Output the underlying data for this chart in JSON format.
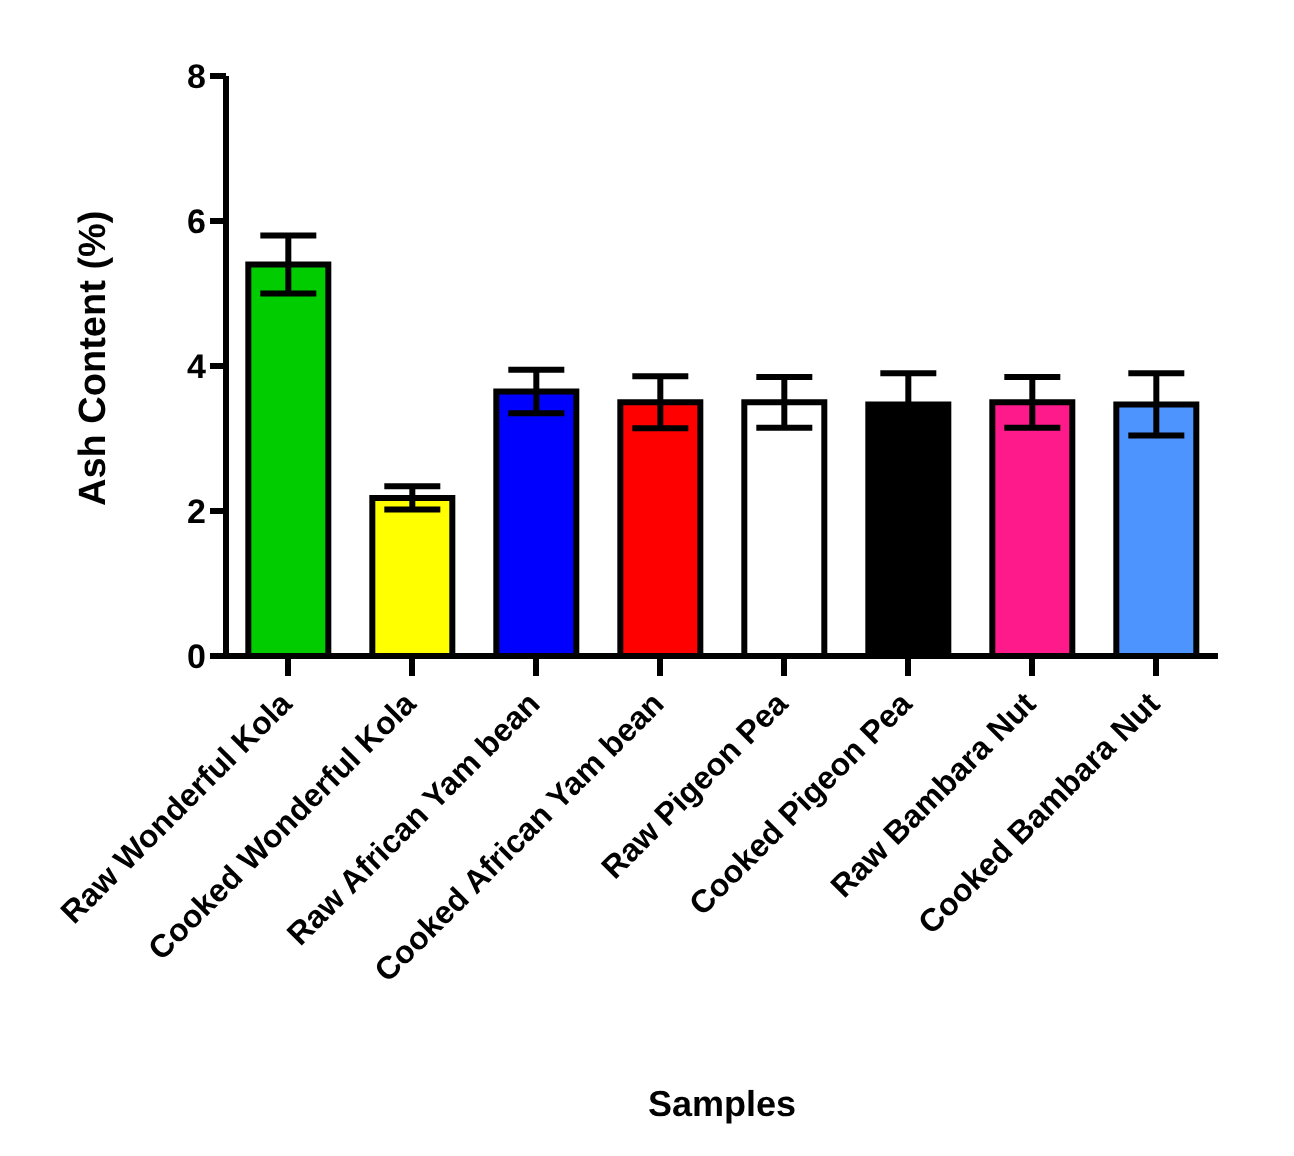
{
  "chart_data": {
    "type": "bar",
    "xlabel": "Samples",
    "ylabel": "Ash Content (%)",
    "categories": [
      "Raw Wonderful Kola",
      "Cooked Wonderful Kola",
      "Raw African Yam bean",
      "Cooked African  Yam bean",
      "Raw Pigeon Pea",
      "Cooked Pigeon Pea",
      "Raw Bambara Nut",
      "Cooked Bambara Nut"
    ],
    "values": [
      5.4,
      2.18,
      3.65,
      3.5,
      3.5,
      3.47,
      3.5,
      3.47
    ],
    "errors": [
      0.4,
      0.16,
      0.3,
      0.36,
      0.35,
      0.43,
      0.35,
      0.43
    ],
    "colors": [
      "#00cc00",
      "#ffff00",
      "#0000ff",
      "#ff0000",
      "#ffffff",
      "#000000",
      "#ff1a8c",
      "#4d94ff"
    ],
    "ylim": [
      0,
      8
    ],
    "yticks": [
      0,
      2,
      4,
      6,
      8
    ],
    "grid": false,
    "legend": false
  }
}
